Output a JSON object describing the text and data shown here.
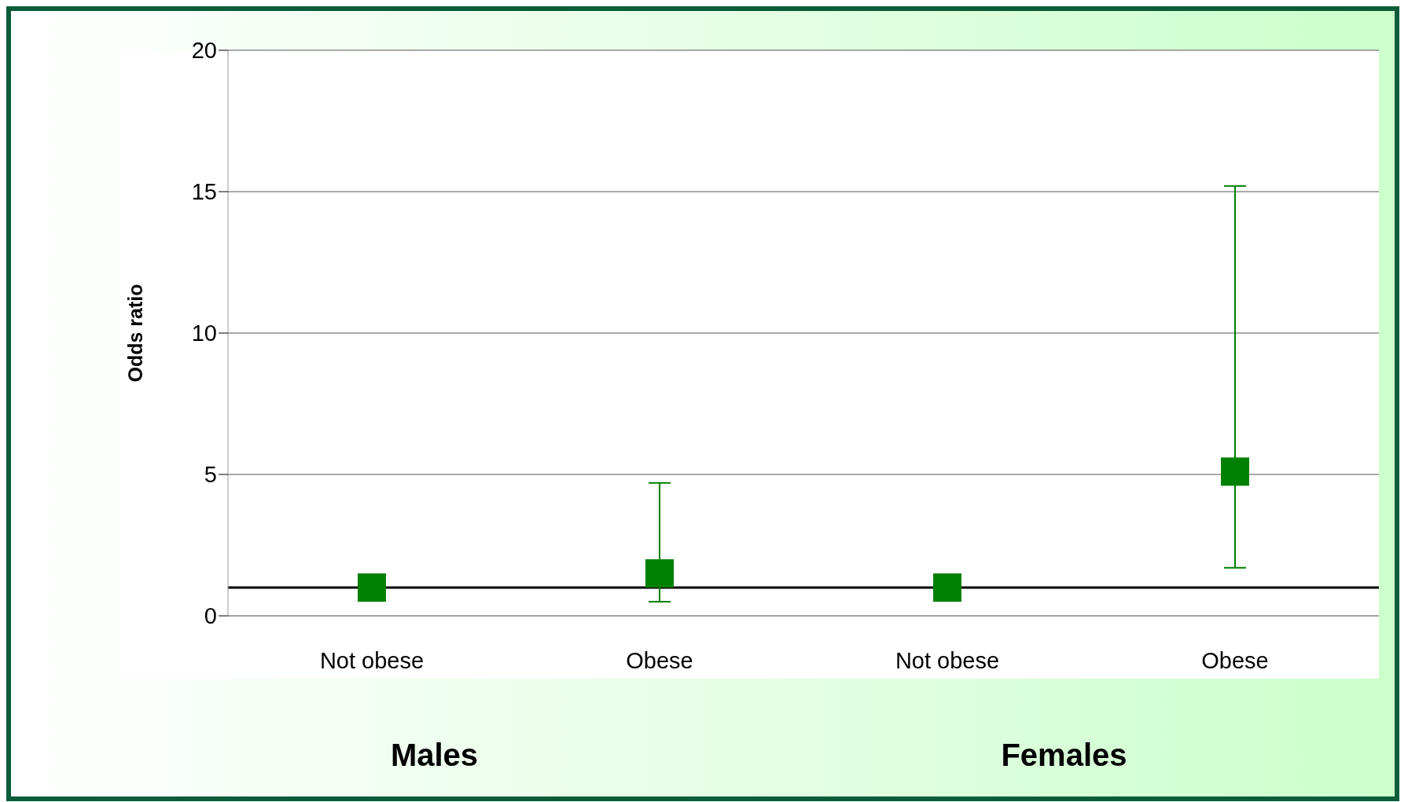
{
  "chart_data": {
    "type": "scatter",
    "ylabel": "Odds ratio",
    "categories": [
      "Not obese",
      "Obese",
      "Not obese",
      "Obese"
    ],
    "series": [
      {
        "color": "#008000",
        "values": [
          1,
          1.5,
          1,
          5.1
        ],
        "errors": [
          null,
          [
            0.5,
            4.7
          ],
          null,
          [
            1.7,
            15.2
          ]
        ]
      }
    ],
    "ylim": [
      0,
      20
    ],
    "yticks": [
      0,
      5,
      10,
      15,
      20
    ],
    "grid": "y",
    "marker": "square",
    "ref_lines": [
      {
        "axis": "y",
        "value": 1,
        "color": "#000000"
      }
    ],
    "annotations": [
      "Males",
      "Females"
    ]
  }
}
